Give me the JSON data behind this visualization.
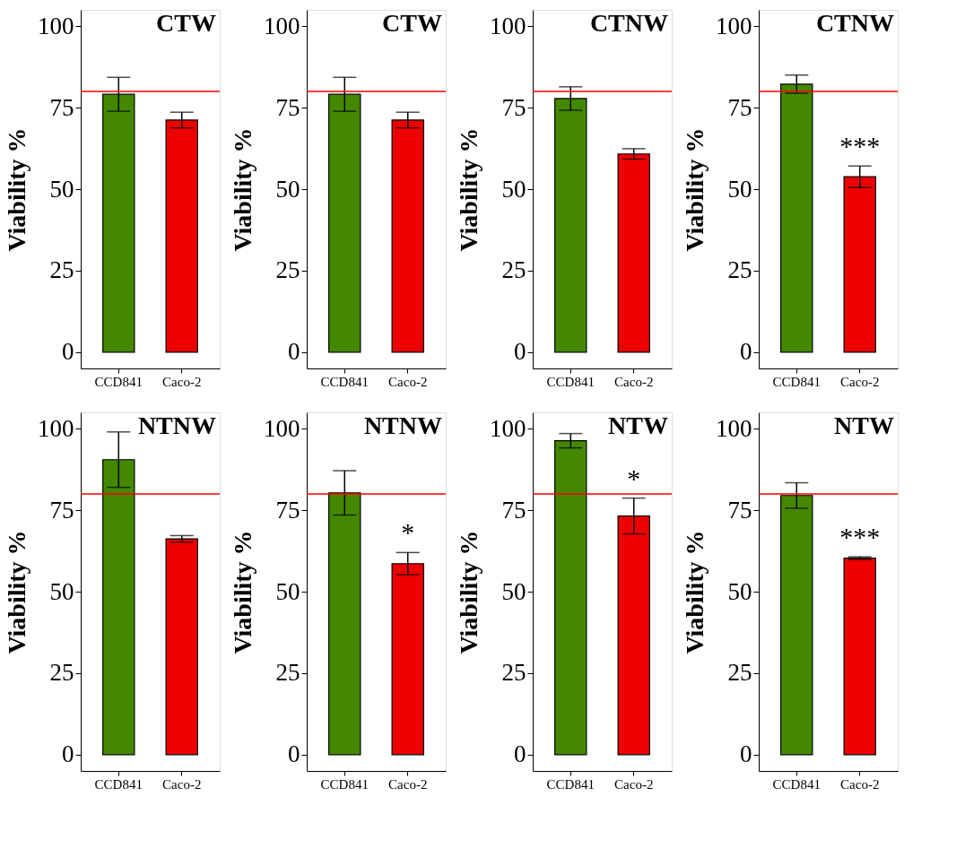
{
  "chart_data": [
    {
      "type": "bar",
      "title": "CTW",
      "ylabel": "Viability %",
      "categories": [
        "CCD841",
        "Caco-2"
      ],
      "values": [
        79.1,
        71.2
      ],
      "errors": [
        5.2,
        2.4
      ],
      "colors": [
        "#448800",
        "#ee0000"
      ],
      "ylim": [
        -5,
        105
      ],
      "yticks": [
        0,
        25,
        50,
        75,
        100
      ],
      "ref_lines": [
        {
          "axis": "y",
          "value": 80,
          "color": "#ff0000"
        }
      ],
      "grid": false
    },
    {
      "type": "bar",
      "title": "CTW",
      "ylabel": "Viability %",
      "categories": [
        "CCD841",
        "Caco-2"
      ],
      "values": [
        79.1,
        71.2
      ],
      "errors": [
        5.2,
        2.4
      ],
      "colors": [
        "#448800",
        "#ee0000"
      ],
      "ylim": [
        -5,
        105
      ],
      "yticks": [
        0,
        25,
        50,
        75,
        100
      ],
      "ref_lines": [
        {
          "axis": "y",
          "value": 80,
          "color": "#ff0000"
        }
      ],
      "grid": false
    },
    {
      "type": "bar",
      "title": "CTNW",
      "ylabel": "Viability %",
      "categories": [
        "CCD841",
        "Caco-2"
      ],
      "values": [
        77.8,
        60.8
      ],
      "errors": [
        3.6,
        1.6
      ],
      "colors": [
        "#448800",
        "#ee0000"
      ],
      "ylim": [
        -5,
        105
      ],
      "yticks": [
        0,
        25,
        50,
        75,
        100
      ],
      "ref_lines": [
        {
          "axis": "y",
          "value": 80,
          "color": "#ff0000"
        }
      ],
      "grid": false
    },
    {
      "type": "bar",
      "title": "CTNW",
      "ylabel": "Viability %",
      "categories": [
        "CCD841",
        "Caco-2"
      ],
      "values": [
        82.2,
        53.8
      ],
      "errors": [
        2.8,
        3.3
      ],
      "colors": [
        "#448800",
        "#ee0000"
      ],
      "ylim": [
        -5,
        105
      ],
      "yticks": [
        0,
        25,
        50,
        75,
        100
      ],
      "ref_lines": [
        {
          "axis": "y",
          "value": 80,
          "color": "#ff0000"
        }
      ],
      "annotations": [
        "***"
      ],
      "grid": false
    },
    {
      "type": "bar",
      "title": "NTNW",
      "ylabel": "Viability %",
      "categories": [
        "CCD841",
        "Caco-2"
      ],
      "values": [
        90.5,
        66.2
      ],
      "errors": [
        8.5,
        1.0
      ],
      "colors": [
        "#448800",
        "#ee0000"
      ],
      "ylim": [
        -5,
        105
      ],
      "yticks": [
        0,
        25,
        50,
        75,
        100
      ],
      "ref_lines": [
        {
          "axis": "y",
          "value": 80,
          "color": "#ff0000"
        }
      ],
      "grid": false
    },
    {
      "type": "bar",
      "title": "NTNW",
      "ylabel": "Viability %",
      "categories": [
        "CCD841",
        "Caco-2"
      ],
      "values": [
        80.3,
        58.6
      ],
      "errors": [
        6.8,
        3.4
      ],
      "colors": [
        "#448800",
        "#ee0000"
      ],
      "ylim": [
        -5,
        105
      ],
      "yticks": [
        0,
        25,
        50,
        75,
        100
      ],
      "ref_lines": [
        {
          "axis": "y",
          "value": 80,
          "color": "#ff0000"
        }
      ],
      "annotations": [
        "*"
      ],
      "grid": false
    },
    {
      "type": "bar",
      "title": "NTW",
      "ylabel": "Viability %",
      "categories": [
        "CCD841",
        "Caco-2"
      ],
      "values": [
        96.3,
        73.2
      ],
      "errors": [
        2.2,
        5.5
      ],
      "colors": [
        "#448800",
        "#ee0000"
      ],
      "ylim": [
        -5,
        105
      ],
      "yticks": [
        0,
        25,
        50,
        75,
        100
      ],
      "ref_lines": [
        {
          "axis": "y",
          "value": 80,
          "color": "#ff0000"
        }
      ],
      "annotations": [
        "*"
      ],
      "grid": false
    },
    {
      "type": "bar",
      "title": "NTW",
      "ylabel": "Viability %",
      "categories": [
        "CCD841",
        "Caco-2"
      ],
      "values": [
        79.5,
        60.3
      ],
      "errors": [
        3.9,
        0.4
      ],
      "colors": [
        "#448800",
        "#ee0000"
      ],
      "ylim": [
        -5,
        105
      ],
      "yticks": [
        0,
        25,
        50,
        75,
        100
      ],
      "ref_lines": [
        {
          "axis": "y",
          "value": 80,
          "color": "#ff0000"
        }
      ],
      "annotations": [
        "***"
      ],
      "grid": false
    }
  ]
}
